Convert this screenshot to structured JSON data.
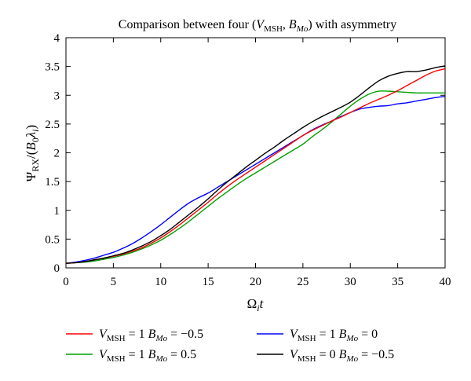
{
  "chart_data": {
    "type": "line",
    "title": "Comparison between four (V_MSH, B_Mo) with asymmetry",
    "title_parts": {
      "lead": "Comparison between four (",
      "v": "V",
      "v_sub": "MSH",
      "sep": ", ",
      "b": "B",
      "b_sub": "Mo",
      "tail": ") with asymmetry"
    },
    "xlabel": "Ω_i t",
    "xlabel_parts": {
      "omega": "Ω",
      "sub": "i",
      "t": "t"
    },
    "ylabel": "Ψ_RX/(B_0 λ_i)",
    "ylabel_parts": {
      "psi": "Ψ",
      "psi_sub": "RX",
      "mid": "/(",
      "b": "B",
      "b_sub": "0",
      "lam": "λ",
      "lam_sub": "i",
      "end": ")"
    },
    "xlim": [
      0,
      40
    ],
    "ylim": [
      0,
      4
    ],
    "xticks": [
      "0",
      "5",
      "10",
      "15",
      "20",
      "25",
      "30",
      "35",
      "40"
    ],
    "yticks": [
      "0",
      "0.5",
      "1",
      "1.5",
      "2",
      "2.5",
      "3",
      "3.5",
      "4"
    ],
    "grid": false,
    "legend_position": "bottom",
    "series": [
      {
        "name": "V_MSH = 1 B_Mo = −0.5",
        "label_parts": {
          "v": "V",
          "v_sub": "MSH",
          "eq1": " = 1 ",
          "b": "B",
          "b_sub": "Mo",
          "eq2": " = −0.5"
        },
        "color": "#ff0000",
        "x": [
          0,
          1,
          2,
          3,
          4,
          5,
          6,
          7,
          8,
          9,
          10,
          11,
          12,
          13,
          14,
          15,
          16,
          17,
          18,
          19,
          20,
          21,
          22,
          23,
          24,
          25,
          26,
          27,
          28,
          29,
          30,
          31,
          32,
          33,
          34,
          35,
          36,
          37,
          38,
          39,
          40
        ],
        "y": [
          0.08,
          0.09,
          0.11,
          0.14,
          0.17,
          0.2,
          0.24,
          0.29,
          0.35,
          0.43,
          0.52,
          0.63,
          0.75,
          0.88,
          1.01,
          1.14,
          1.28,
          1.41,
          1.53,
          1.64,
          1.75,
          1.86,
          1.97,
          2.08,
          2.19,
          2.3,
          2.39,
          2.47,
          2.55,
          2.62,
          2.7,
          2.78,
          2.86,
          2.93,
          3.0,
          3.08,
          3.17,
          3.26,
          3.35,
          3.42,
          3.46
        ]
      },
      {
        "name": "V_MSH = 1 B_Mo = 0.5",
        "label_parts": {
          "v": "V",
          "v_sub": "MSH",
          "eq1": " = 1 ",
          "b": "B",
          "b_sub": "Mo",
          "eq2": " = 0.5"
        },
        "color": "#00a000",
        "x": [
          0,
          1,
          2,
          3,
          4,
          5,
          6,
          7,
          8,
          9,
          10,
          11,
          12,
          13,
          14,
          15,
          16,
          17,
          18,
          19,
          20,
          21,
          22,
          23,
          24,
          25,
          26,
          27,
          28,
          29,
          30,
          31,
          32,
          33,
          34,
          35,
          36,
          37,
          38,
          39,
          40
        ],
        "y": [
          0.08,
          0.09,
          0.1,
          0.12,
          0.15,
          0.18,
          0.22,
          0.27,
          0.33,
          0.4,
          0.48,
          0.58,
          0.69,
          0.81,
          0.94,
          1.07,
          1.2,
          1.32,
          1.44,
          1.55,
          1.65,
          1.75,
          1.85,
          1.95,
          2.05,
          2.15,
          2.28,
          2.4,
          2.53,
          2.67,
          2.81,
          2.93,
          3.02,
          3.07,
          3.07,
          3.06,
          3.05,
          3.04,
          3.04,
          3.04,
          3.04
        ]
      },
      {
        "name": "V_MSH = 1 B_Mo = 0",
        "label_parts": {
          "v": "V",
          "v_sub": "MSH",
          "eq1": " = 1 ",
          "b": "B",
          "b_sub": "Mo",
          "eq2": " = 0"
        },
        "color": "#0000ff",
        "x": [
          0,
          1,
          2,
          3,
          4,
          5,
          6,
          7,
          8,
          9,
          10,
          11,
          12,
          13,
          14,
          15,
          16,
          17,
          18,
          19,
          20,
          21,
          22,
          23,
          24,
          25,
          26,
          27,
          28,
          29,
          30,
          31,
          32,
          33,
          34,
          35,
          36,
          37,
          38,
          39,
          40
        ],
        "y": [
          0.08,
          0.1,
          0.13,
          0.17,
          0.22,
          0.27,
          0.34,
          0.42,
          0.52,
          0.63,
          0.75,
          0.88,
          1.01,
          1.13,
          1.22,
          1.3,
          1.4,
          1.5,
          1.6,
          1.7,
          1.8,
          1.9,
          2.0,
          2.1,
          2.2,
          2.3,
          2.4,
          2.48,
          2.55,
          2.63,
          2.7,
          2.76,
          2.79,
          2.81,
          2.82,
          2.85,
          2.87,
          2.9,
          2.93,
          2.96,
          2.98
        ]
      },
      {
        "name": "V_MSH = 0 B_Mo = −0.5",
        "label_parts": {
          "v": "V",
          "v_sub": "MSH",
          "eq1": " = 0 ",
          "b": "B",
          "b_sub": "Mo",
          "eq2": " = −0.5"
        },
        "color": "#000000",
        "x": [
          0,
          1,
          2,
          3,
          4,
          5,
          6,
          7,
          8,
          9,
          10,
          11,
          12,
          13,
          14,
          15,
          16,
          17,
          18,
          19,
          20,
          21,
          22,
          23,
          24,
          25,
          26,
          27,
          28,
          29,
          30,
          31,
          32,
          33,
          34,
          35,
          36,
          37,
          38,
          39,
          40
        ],
        "y": [
          0.08,
          0.09,
          0.11,
          0.14,
          0.17,
          0.21,
          0.25,
          0.31,
          0.38,
          0.46,
          0.56,
          0.67,
          0.8,
          0.93,
          1.06,
          1.2,
          1.35,
          1.49,
          1.62,
          1.75,
          1.87,
          1.99,
          2.1,
          2.22,
          2.33,
          2.44,
          2.54,
          2.63,
          2.71,
          2.79,
          2.88,
          3.0,
          3.13,
          3.25,
          3.33,
          3.38,
          3.41,
          3.41,
          3.44,
          3.48,
          3.51
        ]
      }
    ]
  }
}
